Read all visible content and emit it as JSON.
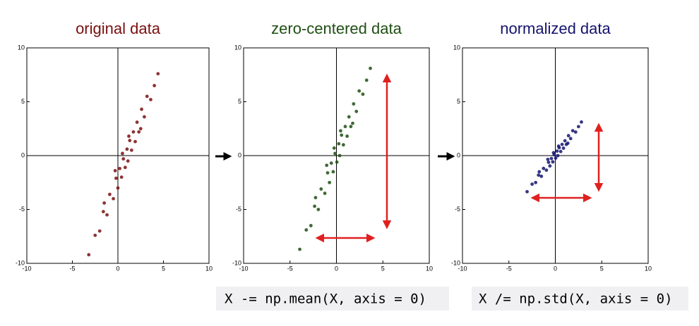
{
  "chart_data": [
    {
      "type": "scatter",
      "title": "original data",
      "color": "#7a1010",
      "x": [
        -3.2,
        -2.5,
        -2,
        -1.6,
        -1.2,
        -0.9,
        -0.5,
        -0.2,
        0,
        0.2,
        0.4,
        0.6,
        0.8,
        1,
        1.1,
        1.3,
        1.5,
        1.7,
        1.9,
        2.1,
        2.3,
        2.6,
        2.9,
        3.2,
        3.6,
        4,
        4.4,
        -1.5,
        0.5,
        1.2,
        2.5,
        -0.3
      ],
      "y": [
        -9.2,
        -7.4,
        -7.0,
        -5.2,
        -5.5,
        -3.6,
        -4.0,
        -2.1,
        -3.0,
        -1.2,
        -2.0,
        -0.3,
        -1.1,
        0.6,
        -0.5,
        1.4,
        0.5,
        2.2,
        1.3,
        3.1,
        2.2,
        4.3,
        3.6,
        5.5,
        5.2,
        6.5,
        7.6,
        -4.4,
        0.2,
        1.8,
        2.5,
        -1.4
      ],
      "xlim": [
        -10,
        10
      ],
      "ylim": [
        -10,
        10
      ],
      "xticks": [
        -10,
        -5,
        0,
        5,
        10
      ],
      "yticks": [
        -10,
        -5,
        0,
        5,
        10
      ]
    },
    {
      "type": "scatter",
      "title": "zero-centered data",
      "color": "#1f4f14",
      "x": [
        -3.95,
        -3.25,
        -2.75,
        -2.35,
        -1.95,
        -1.65,
        -1.25,
        -0.95,
        -0.75,
        -0.55,
        -0.35,
        -0.15,
        0.05,
        0.25,
        0.35,
        0.55,
        0.75,
        0.95,
        1.15,
        1.35,
        1.55,
        1.85,
        2.15,
        2.45,
        2.85,
        3.25,
        3.65,
        -2.25,
        -0.25,
        0.45,
        1.75,
        -1.05
      ],
      "y": [
        -8.7,
        -6.9,
        -6.5,
        -4.7,
        -5.0,
        -3.1,
        -3.5,
        -1.6,
        -2.5,
        -0.7,
        -1.5,
        0.2,
        -0.6,
        1.1,
        0,
        1.9,
        1.0,
        2.7,
        1.8,
        3.6,
        2.7,
        4.8,
        4.1,
        6.0,
        5.7,
        7.0,
        8.1,
        -3.9,
        0.7,
        2.3,
        3.0,
        -0.9
      ],
      "xlim": [
        -10,
        10
      ],
      "ylim": [
        -10,
        10
      ],
      "xticks": [
        -10,
        -5,
        0,
        5,
        10
      ],
      "yticks": [
        -10,
        -5,
        0,
        5,
        10
      ],
      "annotation": "X -= np.mean(X, axis = 0)"
    },
    {
      "type": "scatter",
      "title": "normalized data",
      "color": "#14146e",
      "x": [
        -3.04,
        -2.5,
        -2.12,
        -1.81,
        -1.5,
        -1.27,
        -0.96,
        -0.73,
        -0.58,
        -0.42,
        -0.27,
        -0.12,
        0.04,
        0.19,
        0.27,
        0.42,
        0.58,
        0.73,
        0.88,
        1.04,
        1.19,
        1.42,
        1.65,
        1.88,
        2.19,
        2.5,
        2.81,
        -1.73,
        -0.19,
        0.35,
        1.35,
        -0.81
      ],
      "y": [
        -3.35,
        -2.65,
        -2.5,
        -1.81,
        -1.92,
        -1.19,
        -1.35,
        -0.62,
        -0.96,
        -0.27,
        -0.58,
        0.08,
        -0.23,
        0.42,
        0,
        0.73,
        0.38,
        1.04,
        0.69,
        1.38,
        1.04,
        1.85,
        1.58,
        2.31,
        2.19,
        2.69,
        3.12,
        -1.5,
        0.27,
        0.88,
        1.15,
        -0.35
      ],
      "xlim": [
        -10,
        10
      ],
      "ylim": [
        -10,
        10
      ],
      "xticks": [
        -10,
        -5,
        0,
        5,
        10
      ],
      "yticks": [
        -10,
        -5,
        0,
        5,
        10
      ],
      "annotation": "X /= np.std(X, axis = 0)"
    }
  ]
}
